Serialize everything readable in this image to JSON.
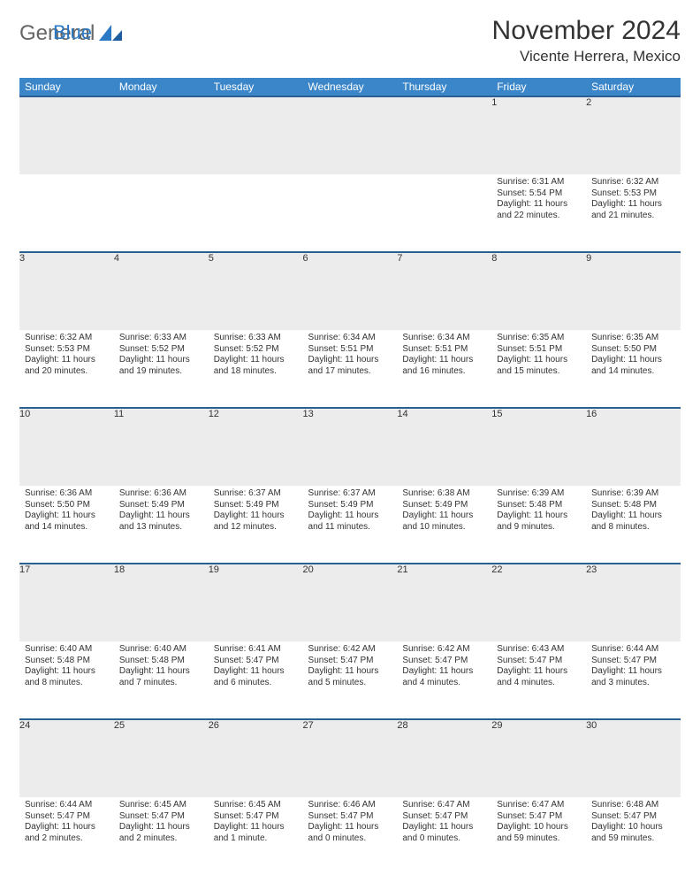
{
  "brand": {
    "general": "General",
    "blue": "Blue"
  },
  "title": "November 2024",
  "location": "Vicente Herrera, Mexico",
  "colors": {
    "header_bg": "#3b86c9",
    "header_text": "#ffffff",
    "row_border": "#2b5f94",
    "daynum_bg": "#ececec",
    "text": "#333333",
    "logo_blue": "#2b78c4",
    "page_bg": "#ffffff"
  },
  "typography": {
    "title_fontsize": 30,
    "location_fontsize": 17,
    "header_fontsize": 12,
    "daynum_fontsize": 11,
    "cell_fontsize": 10
  },
  "weekdays": [
    "Sunday",
    "Monday",
    "Tuesday",
    "Wednesday",
    "Thursday",
    "Friday",
    "Saturday"
  ],
  "weeks": [
    [
      null,
      null,
      null,
      null,
      null,
      {
        "n": "1",
        "sr": "Sunrise: 6:31 AM",
        "ss": "Sunset: 5:54 PM",
        "dl": "Daylight: 11 hours and 22 minutes."
      },
      {
        "n": "2",
        "sr": "Sunrise: 6:32 AM",
        "ss": "Sunset: 5:53 PM",
        "dl": "Daylight: 11 hours and 21 minutes."
      }
    ],
    [
      {
        "n": "3",
        "sr": "Sunrise: 6:32 AM",
        "ss": "Sunset: 5:53 PM",
        "dl": "Daylight: 11 hours and 20 minutes."
      },
      {
        "n": "4",
        "sr": "Sunrise: 6:33 AM",
        "ss": "Sunset: 5:52 PM",
        "dl": "Daylight: 11 hours and 19 minutes."
      },
      {
        "n": "5",
        "sr": "Sunrise: 6:33 AM",
        "ss": "Sunset: 5:52 PM",
        "dl": "Daylight: 11 hours and 18 minutes."
      },
      {
        "n": "6",
        "sr": "Sunrise: 6:34 AM",
        "ss": "Sunset: 5:51 PM",
        "dl": "Daylight: 11 hours and 17 minutes."
      },
      {
        "n": "7",
        "sr": "Sunrise: 6:34 AM",
        "ss": "Sunset: 5:51 PM",
        "dl": "Daylight: 11 hours and 16 minutes."
      },
      {
        "n": "8",
        "sr": "Sunrise: 6:35 AM",
        "ss": "Sunset: 5:51 PM",
        "dl": "Daylight: 11 hours and 15 minutes."
      },
      {
        "n": "9",
        "sr": "Sunrise: 6:35 AM",
        "ss": "Sunset: 5:50 PM",
        "dl": "Daylight: 11 hours and 14 minutes."
      }
    ],
    [
      {
        "n": "10",
        "sr": "Sunrise: 6:36 AM",
        "ss": "Sunset: 5:50 PM",
        "dl": "Daylight: 11 hours and 14 minutes."
      },
      {
        "n": "11",
        "sr": "Sunrise: 6:36 AM",
        "ss": "Sunset: 5:49 PM",
        "dl": "Daylight: 11 hours and 13 minutes."
      },
      {
        "n": "12",
        "sr": "Sunrise: 6:37 AM",
        "ss": "Sunset: 5:49 PM",
        "dl": "Daylight: 11 hours and 12 minutes."
      },
      {
        "n": "13",
        "sr": "Sunrise: 6:37 AM",
        "ss": "Sunset: 5:49 PM",
        "dl": "Daylight: 11 hours and 11 minutes."
      },
      {
        "n": "14",
        "sr": "Sunrise: 6:38 AM",
        "ss": "Sunset: 5:49 PM",
        "dl": "Daylight: 11 hours and 10 minutes."
      },
      {
        "n": "15",
        "sr": "Sunrise: 6:39 AM",
        "ss": "Sunset: 5:48 PM",
        "dl": "Daylight: 11 hours and 9 minutes."
      },
      {
        "n": "16",
        "sr": "Sunrise: 6:39 AM",
        "ss": "Sunset: 5:48 PM",
        "dl": "Daylight: 11 hours and 8 minutes."
      }
    ],
    [
      {
        "n": "17",
        "sr": "Sunrise: 6:40 AM",
        "ss": "Sunset: 5:48 PM",
        "dl": "Daylight: 11 hours and 8 minutes."
      },
      {
        "n": "18",
        "sr": "Sunrise: 6:40 AM",
        "ss": "Sunset: 5:48 PM",
        "dl": "Daylight: 11 hours and 7 minutes."
      },
      {
        "n": "19",
        "sr": "Sunrise: 6:41 AM",
        "ss": "Sunset: 5:47 PM",
        "dl": "Daylight: 11 hours and 6 minutes."
      },
      {
        "n": "20",
        "sr": "Sunrise: 6:42 AM",
        "ss": "Sunset: 5:47 PM",
        "dl": "Daylight: 11 hours and 5 minutes."
      },
      {
        "n": "21",
        "sr": "Sunrise: 6:42 AM",
        "ss": "Sunset: 5:47 PM",
        "dl": "Daylight: 11 hours and 4 minutes."
      },
      {
        "n": "22",
        "sr": "Sunrise: 6:43 AM",
        "ss": "Sunset: 5:47 PM",
        "dl": "Daylight: 11 hours and 4 minutes."
      },
      {
        "n": "23",
        "sr": "Sunrise: 6:44 AM",
        "ss": "Sunset: 5:47 PM",
        "dl": "Daylight: 11 hours and 3 minutes."
      }
    ],
    [
      {
        "n": "24",
        "sr": "Sunrise: 6:44 AM",
        "ss": "Sunset: 5:47 PM",
        "dl": "Daylight: 11 hours and 2 minutes."
      },
      {
        "n": "25",
        "sr": "Sunrise: 6:45 AM",
        "ss": "Sunset: 5:47 PM",
        "dl": "Daylight: 11 hours and 2 minutes."
      },
      {
        "n": "26",
        "sr": "Sunrise: 6:45 AM",
        "ss": "Sunset: 5:47 PM",
        "dl": "Daylight: 11 hours and 1 minute."
      },
      {
        "n": "27",
        "sr": "Sunrise: 6:46 AM",
        "ss": "Sunset: 5:47 PM",
        "dl": "Daylight: 11 hours and 0 minutes."
      },
      {
        "n": "28",
        "sr": "Sunrise: 6:47 AM",
        "ss": "Sunset: 5:47 PM",
        "dl": "Daylight: 11 hours and 0 minutes."
      },
      {
        "n": "29",
        "sr": "Sunrise: 6:47 AM",
        "ss": "Sunset: 5:47 PM",
        "dl": "Daylight: 10 hours and 59 minutes."
      },
      {
        "n": "30",
        "sr": "Sunrise: 6:48 AM",
        "ss": "Sunset: 5:47 PM",
        "dl": "Daylight: 10 hours and 59 minutes."
      }
    ]
  ]
}
